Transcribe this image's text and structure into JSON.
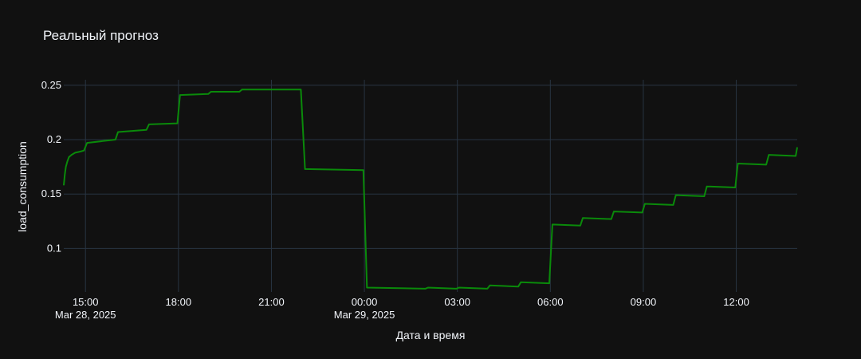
{
  "chart_data": {
    "type": "line",
    "title": "Реальный прогноз",
    "xlabel": "Дата и время",
    "ylabel": "load_consumption",
    "grid": true,
    "colors": {
      "background": "#111111",
      "grid": "#283442",
      "text": "#f2f5fa",
      "line": "#0a8a0a"
    },
    "xlim": [
      "2025-03-28 14:18",
      "2025-03-29 13:58"
    ],
    "ylim": [
      0.06,
      0.255
    ],
    "y_ticks": [
      {
        "value": 0.1,
        "label": "0.1"
      },
      {
        "value": 0.15,
        "label": "0.15"
      },
      {
        "value": 0.2,
        "label": "0.2"
      },
      {
        "value": 0.25,
        "label": "0.25"
      }
    ],
    "x_ticks": [
      {
        "value": "2025-03-28 15:00",
        "label": "15:00",
        "sublabel": "Mar 28, 2025"
      },
      {
        "value": "2025-03-28 18:00",
        "label": "18:00",
        "sublabel": ""
      },
      {
        "value": "2025-03-28 21:00",
        "label": "21:00",
        "sublabel": ""
      },
      {
        "value": "2025-03-29 00:00",
        "label": "00:00",
        "sublabel": "Mar 29, 2025"
      },
      {
        "value": "2025-03-29 03:00",
        "label": "03:00",
        "sublabel": ""
      },
      {
        "value": "2025-03-29 06:00",
        "label": "06:00",
        "sublabel": ""
      },
      {
        "value": "2025-03-29 09:00",
        "label": "09:00",
        "sublabel": ""
      },
      {
        "value": "2025-03-29 12:00",
        "label": "12:00",
        "sublabel": ""
      }
    ],
    "series": [
      {
        "x": [
          "2025-03-28 14:18",
          "2025-03-28 14:20",
          "2025-03-28 14:22",
          "2025-03-28 14:25",
          "2025-03-28 14:28",
          "2025-03-28 14:33",
          "2025-03-28 14:40",
          "2025-03-28 14:50",
          "2025-03-28 14:57",
          "2025-03-28 15:03",
          "2025-03-28 15:58",
          "2025-03-28 16:03",
          "2025-03-28 16:58",
          "2025-03-28 17:03",
          "2025-03-28 17:58",
          "2025-03-28 18:03",
          "2025-03-28 18:58",
          "2025-03-28 19:03",
          "2025-03-28 19:58",
          "2025-03-28 20:03",
          "2025-03-28 20:58",
          "2025-03-28 21:03",
          "2025-03-28 21:57",
          "2025-03-28 22:05",
          "2025-03-28 23:58",
          "2025-03-29 00:05",
          "2025-03-29 01:58",
          "2025-03-29 02:03",
          "2025-03-29 02:58",
          "2025-03-29 03:03",
          "2025-03-29 03:58",
          "2025-03-29 04:03",
          "2025-03-29 04:58",
          "2025-03-29 05:03",
          "2025-03-29 05:58",
          "2025-03-29 06:04",
          "2025-03-29 06:58",
          "2025-03-29 07:03",
          "2025-03-29 07:58",
          "2025-03-29 08:03",
          "2025-03-29 08:58",
          "2025-03-29 09:03",
          "2025-03-29 09:58",
          "2025-03-29 10:03",
          "2025-03-29 10:58",
          "2025-03-29 11:03",
          "2025-03-29 11:58",
          "2025-03-29 12:03",
          "2025-03-29 12:58",
          "2025-03-29 13:03",
          "2025-03-29 13:55",
          "2025-03-29 13:58"
        ],
        "y": [
          0.158,
          0.168,
          0.175,
          0.18,
          0.184,
          0.186,
          0.188,
          0.189,
          0.19,
          0.197,
          0.2,
          0.207,
          0.209,
          0.214,
          0.215,
          0.241,
          0.242,
          0.244,
          0.244,
          0.246,
          0.246,
          0.246,
          0.246,
          0.173,
          0.172,
          0.064,
          0.063,
          0.064,
          0.063,
          0.064,
          0.063,
          0.066,
          0.065,
          0.069,
          0.068,
          0.122,
          0.121,
          0.128,
          0.127,
          0.134,
          0.133,
          0.141,
          0.14,
          0.149,
          0.148,
          0.157,
          0.156,
          0.178,
          0.177,
          0.186,
          0.185,
          0.193
        ]
      }
    ]
  }
}
